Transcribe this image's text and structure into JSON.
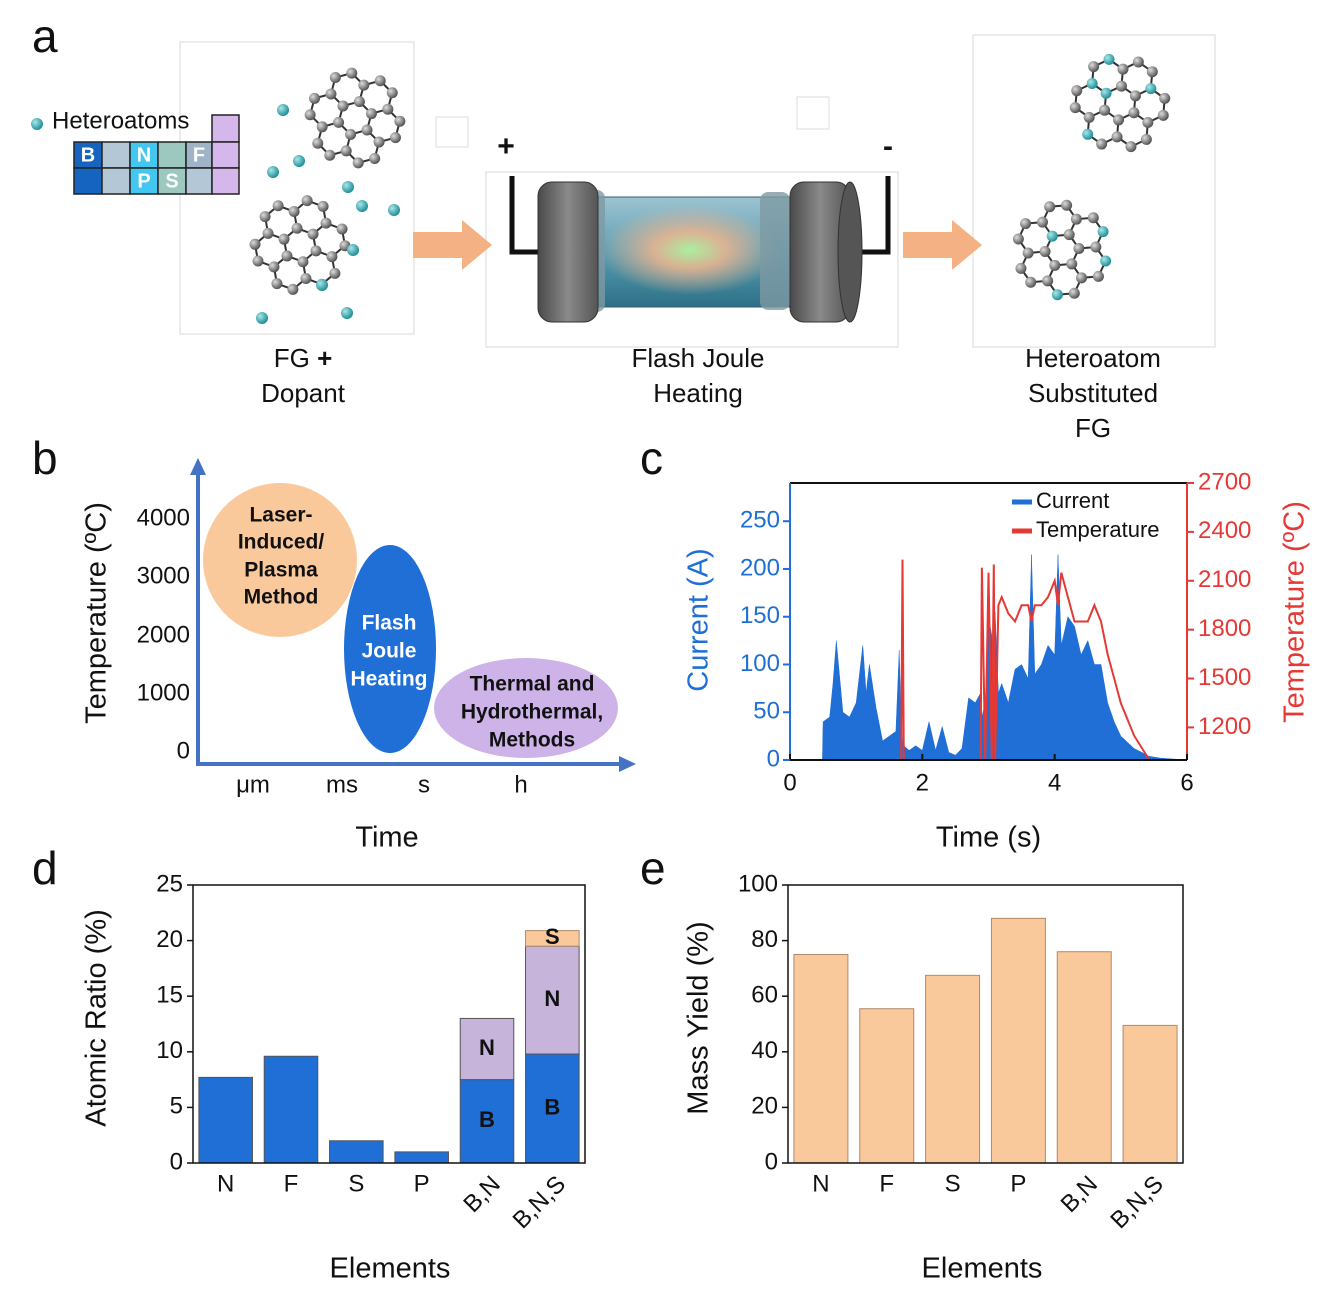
{
  "panel_labels": [
    "a",
    "b",
    "c",
    "d",
    "e"
  ],
  "diagram": {
    "legend_title": "Heteroatoms",
    "table_elements": [
      "B",
      "N",
      "F",
      "P",
      "S"
    ],
    "electrode_plus": "+",
    "electrode_minus": "-",
    "captions": [
      {
        "line1": "FG",
        "plus": "+",
        "line2": "Dopant"
      },
      {
        "line1": "Flash Joule",
        "line2": "Heating"
      },
      {
        "line1": "Heteroatom",
        "line2": "Substituted",
        "line3": "FG"
      }
    ]
  },
  "schematic": {
    "y_axis_label": "Temperature (ºC)",
    "x_axis_label": "Time",
    "yticks": [
      "4000",
      "3000",
      "2000",
      "1000",
      "0"
    ],
    "xticks": [
      "μm",
      "ms",
      "s",
      "h"
    ],
    "regions": [
      {
        "lines": [
          "Laser-",
          "Induced/",
          "Plasma",
          "Method"
        ]
      },
      {
        "lines": [
          "Flash",
          "Joule",
          "Heating"
        ]
      },
      {
        "lines": [
          "Thermal and",
          "Hydrothermal,",
          "Methods"
        ]
      }
    ]
  },
  "chart_data": [
    {
      "type": "line",
      "x_label": "Time (s)",
      "y_label": "Current  (A)",
      "y2_label": "Temperature (ºC)",
      "xlim": [
        0,
        6
      ],
      "xticks": [
        0,
        2,
        4,
        6
      ],
      "ylim": [
        0,
        290
      ],
      "yticks": [
        0,
        50,
        100,
        150,
        200,
        250
      ],
      "y2lim": [
        1000,
        2700
      ],
      "y2ticks": [
        1200,
        1500,
        1800,
        2100,
        2400,
        2700
      ],
      "legend": "top-right",
      "x": [
        0,
        0.49,
        0.5,
        0.6,
        0.65,
        0.7,
        0.8,
        0.9,
        1.0,
        1.05,
        1.1,
        1.15,
        1.2,
        1.3,
        1.4,
        1.5,
        1.6,
        1.65,
        1.68,
        1.7,
        1.72,
        1.8,
        1.9,
        2.0,
        2.1,
        2.2,
        2.3,
        2.4,
        2.5,
        2.6,
        2.7,
        2.8,
        2.88,
        2.9,
        2.95,
        3.0,
        3.05,
        3.08,
        3.1,
        3.15,
        3.2,
        3.3,
        3.4,
        3.5,
        3.6,
        3.65,
        3.7,
        3.8,
        3.9,
        4.0,
        4.05,
        4.1,
        4.2,
        4.3,
        4.4,
        4.5,
        4.6,
        4.7,
        4.8,
        4.9,
        5.0,
        5.2,
        5.4,
        5.42,
        5.6,
        6.0
      ],
      "series": [
        {
          "name": "Current",
          "color": "#1f6fd6",
          "kind": "area",
          "values": [
            0,
            0,
            40,
            45,
            80,
            125,
            50,
            45,
            60,
            90,
            120,
            70,
            100,
            55,
            20,
            25,
            30,
            115,
            40,
            20,
            15,
            10,
            15,
            10,
            40,
            10,
            35,
            8,
            5,
            12,
            65,
            60,
            70,
            45,
            60,
            150,
            130,
            90,
            155,
            70,
            80,
            60,
            95,
            100,
            85,
            215,
            90,
            100,
            120,
            110,
            215,
            120,
            150,
            140,
            110,
            125,
            100,
            100,
            60,
            40,
            25,
            12,
            5,
            4,
            2,
            0
          ]
        },
        {
          "name": "Temperature",
          "color": "#e53935",
          "kind": "line",
          "axis": "y2",
          "values": [
            null,
            null,
            null,
            null,
            null,
            null,
            null,
            null,
            null,
            null,
            null,
            null,
            null,
            null,
            null,
            null,
            null,
            null,
            1000,
            2230,
            1000,
            null,
            null,
            null,
            null,
            null,
            null,
            null,
            null,
            null,
            null,
            null,
            1000,
            2180,
            1000,
            2150,
            1000,
            2200,
            1000,
            1950,
            2000,
            1900,
            1850,
            1950,
            1950,
            1850,
            1950,
            1950,
            2000,
            2100,
            1950,
            2150,
            2000,
            1850,
            1850,
            1850,
            1950,
            1850,
            1650,
            1500,
            1350,
            1150,
            1020,
            1000,
            null,
            null
          ]
        }
      ]
    },
    {
      "type": "bar",
      "stacked": true,
      "x_label": "Elements",
      "y_label": "Atomic Ratio (%)",
      "categories": [
        "N",
        "F",
        "S",
        "P",
        "B,N",
        "B,N,S"
      ],
      "ylim": [
        0,
        25
      ],
      "yticks": [
        0,
        5,
        10,
        15,
        20,
        25
      ],
      "series": [
        {
          "color": "#1f6fd6",
          "values": [
            7.7,
            9.6,
            2.0,
            1.0,
            7.5,
            9.8
          ],
          "labels": [
            null,
            null,
            null,
            null,
            "B",
            "B"
          ]
        },
        {
          "color": "#c7b4da",
          "values": [
            null,
            null,
            null,
            null,
            5.5,
            9.7
          ],
          "labels": [
            null,
            null,
            null,
            null,
            "N",
            "N"
          ]
        },
        {
          "color": "#f9c89b",
          "values": [
            null,
            null,
            null,
            null,
            null,
            1.4
          ],
          "labels": [
            null,
            null,
            null,
            null,
            null,
            "S"
          ]
        }
      ]
    },
    {
      "type": "bar",
      "x_label": "Elements",
      "y_label": "Mass Yield  (%)",
      "categories": [
        "N",
        "F",
        "S",
        "P",
        "B,N",
        "B,N,S"
      ],
      "ylim": [
        0,
        100
      ],
      "yticks": [
        0,
        20,
        40,
        60,
        80,
        100
      ],
      "series": [
        {
          "color": "#f9c89b",
          "values": [
            75,
            55.5,
            67.5,
            88,
            76,
            49.5
          ]
        }
      ]
    }
  ]
}
